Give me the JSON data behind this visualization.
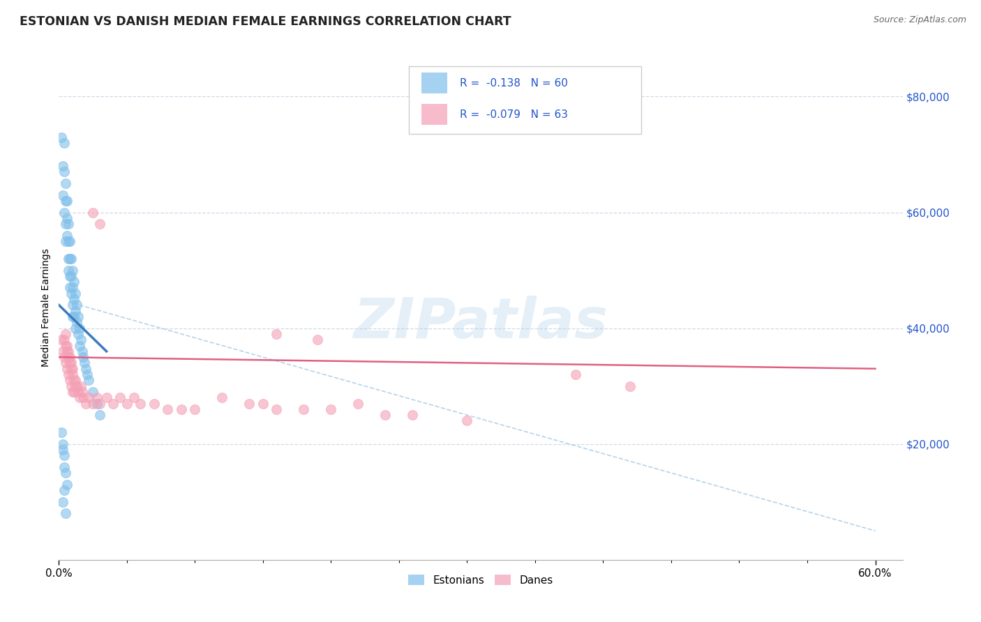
{
  "title": "ESTONIAN VS DANISH MEDIAN FEMALE EARNINGS CORRELATION CHART",
  "source": "Source: ZipAtlas.com",
  "ylabel": "Median Female Earnings",
  "xlim": [
    0.0,
    0.62
  ],
  "ylim": [
    0,
    87000
  ],
  "xticklabels_outer": [
    "0.0%",
    "60.0%"
  ],
  "yticks_right": [
    20000,
    40000,
    60000,
    80000
  ],
  "ytick_labels_right": [
    "$20,000",
    "$40,000",
    "$60,000",
    "$80,000"
  ],
  "blue_color": "#7fbfea",
  "pink_color": "#f4a0b5",
  "blue_line_color": "#3a7bbf",
  "pink_line_color": "#e06080",
  "dashed_line_color": "#a0c8e8",
  "legend_text_color": "#2255cc",
  "legend_R1": "R =  -0.138",
  "legend_N1": "N = 60",
  "legend_R2": "R =  -0.079",
  "legend_N2": "N = 63",
  "legend_label1": "Estonians",
  "legend_label2": "Danes",
  "watermark": "ZIPatlas",
  "title_color": "#222222",
  "source_color": "#666666",
  "right_axis_color": "#2255cc",
  "grid_color": "#d0d8e8",
  "blue_scatter_x": [
    0.002,
    0.003,
    0.003,
    0.004,
    0.004,
    0.004,
    0.005,
    0.005,
    0.005,
    0.005,
    0.006,
    0.006,
    0.006,
    0.007,
    0.007,
    0.007,
    0.007,
    0.008,
    0.008,
    0.008,
    0.008,
    0.009,
    0.009,
    0.009,
    0.01,
    0.01,
    0.01,
    0.01,
    0.011,
    0.011,
    0.011,
    0.012,
    0.012,
    0.012,
    0.013,
    0.013,
    0.014,
    0.014,
    0.015,
    0.015,
    0.016,
    0.017,
    0.018,
    0.019,
    0.02,
    0.021,
    0.022,
    0.025,
    0.028,
    0.03,
    0.002,
    0.003,
    0.004,
    0.005,
    0.003,
    0.004,
    0.005,
    0.006,
    0.004,
    0.003
  ],
  "blue_scatter_y": [
    73000,
    68000,
    63000,
    72000,
    67000,
    60000,
    65000,
    62000,
    58000,
    55000,
    62000,
    59000,
    56000,
    58000,
    55000,
    52000,
    50000,
    55000,
    52000,
    49000,
    47000,
    52000,
    49000,
    46000,
    50000,
    47000,
    44000,
    42000,
    48000,
    45000,
    42000,
    46000,
    43000,
    40000,
    44000,
    41000,
    42000,
    39000,
    40000,
    37000,
    38000,
    36000,
    35000,
    34000,
    33000,
    32000,
    31000,
    29000,
    27000,
    25000,
    22000,
    20000,
    18000,
    15000,
    10000,
    12000,
    8000,
    13000,
    16000,
    19000
  ],
  "pink_scatter_x": [
    0.002,
    0.003,
    0.004,
    0.004,
    0.005,
    0.005,
    0.006,
    0.006,
    0.007,
    0.007,
    0.008,
    0.008,
    0.009,
    0.009,
    0.01,
    0.01,
    0.011,
    0.011,
    0.012,
    0.013,
    0.014,
    0.015,
    0.016,
    0.017,
    0.018,
    0.02,
    0.022,
    0.025,
    0.028,
    0.03,
    0.035,
    0.04,
    0.045,
    0.05,
    0.055,
    0.06,
    0.07,
    0.08,
    0.09,
    0.1,
    0.12,
    0.14,
    0.15,
    0.16,
    0.18,
    0.2,
    0.22,
    0.24,
    0.26,
    0.3,
    0.025,
    0.03,
    0.16,
    0.19,
    0.38,
    0.42,
    0.005,
    0.006,
    0.007,
    0.008,
    0.009,
    0.01,
    0.012
  ],
  "pink_scatter_y": [
    38000,
    36000,
    38000,
    35000,
    37000,
    34000,
    36000,
    33000,
    35000,
    32000,
    34000,
    31000,
    33000,
    30000,
    32000,
    29000,
    31000,
    29000,
    30000,
    30000,
    29000,
    28000,
    30000,
    29000,
    28000,
    27000,
    28000,
    27000,
    28000,
    27000,
    28000,
    27000,
    28000,
    27000,
    28000,
    27000,
    27000,
    26000,
    26000,
    26000,
    28000,
    27000,
    27000,
    26000,
    26000,
    26000,
    27000,
    25000,
    25000,
    24000,
    60000,
    58000,
    39000,
    38000,
    32000,
    30000,
    39000,
    37000,
    36000,
    35000,
    34000,
    33000,
    31000
  ]
}
